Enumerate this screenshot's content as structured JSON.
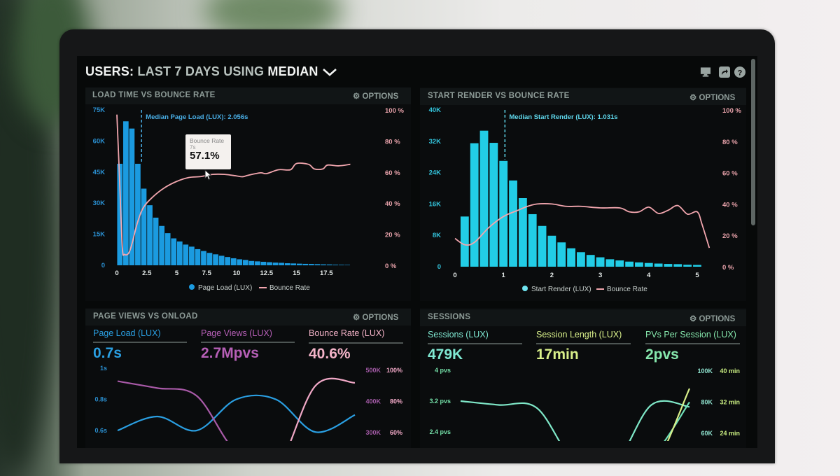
{
  "header": {
    "title_users": "USERS:",
    "title_range": "LAST 7 DAYS",
    "title_using": "USING",
    "title_stat": "MEDIAN",
    "icons": [
      "chevron-down-icon",
      "monitor-icon",
      "share-icon",
      "help-icon"
    ]
  },
  "panels": {
    "load_time": {
      "title": "LOAD TIME VS BOUNCE RATE",
      "options_label": "OPTIONS"
    },
    "start_render": {
      "title": "START RENDER VS BOUNCE RATE",
      "options_label": "OPTIONS"
    },
    "page_views": {
      "title": "PAGE VIEWS VS ONLOAD",
      "options_label": "OPTIONS",
      "kpis": [
        {
          "label": "Page Load (LUX)",
          "value": "0.7s",
          "color": "#2a9fe2"
        },
        {
          "label": "Page Views (LUX)",
          "value": "2.7Mpvs",
          "color": "#b65fb6"
        },
        {
          "label": "Bounce Rate (LUX)",
          "value": "40.6%",
          "color": "#f4b3c8"
        }
      ]
    },
    "sessions": {
      "title": "SESSIONS",
      "options_label": "OPTIONS",
      "kpis": [
        {
          "label": "Sessions (LUX)",
          "value": "479K",
          "color": "#7fe8d2"
        },
        {
          "label": "Session Length (LUX)",
          "value": "17min",
          "color": "#d9f08a"
        },
        {
          "label": "PVs Per Session (LUX)",
          "value": "2pvs",
          "color": "#86e8ad"
        }
      ]
    }
  },
  "chart_data": [
    {
      "type": "bar",
      "title": "LOAD TIME VS BOUNCE RATE",
      "xlim": [
        0,
        19.5
      ],
      "ylim": [
        0,
        75000
      ],
      "y2lim": [
        0,
        100
      ],
      "x_ticks": [
        {
          "v": 0,
          "label": "0"
        },
        {
          "v": 2.5,
          "label": "2.5"
        },
        {
          "v": 5,
          "label": "5"
        },
        {
          "v": 7.5,
          "label": "7.5"
        },
        {
          "v": 10,
          "label": "10"
        },
        {
          "v": 12.5,
          "label": "12.5"
        },
        {
          "v": 15,
          "label": "15"
        },
        {
          "v": 17.5,
          "label": "17.5"
        }
      ],
      "y_ticks": [
        {
          "v": 0,
          "label": "0"
        },
        {
          "v": 15000,
          "label": "15K"
        },
        {
          "v": 30000,
          "label": "30K"
        },
        {
          "v": 45000,
          "label": "45K"
        },
        {
          "v": 60000,
          "label": "60K"
        },
        {
          "v": 75000,
          "label": "75K"
        }
      ],
      "y2_ticks": [
        {
          "v": 0,
          "label": "0 %"
        },
        {
          "v": 20,
          "label": "20 %"
        },
        {
          "v": 40,
          "label": "40 %"
        },
        {
          "v": 60,
          "label": "60 %"
        },
        {
          "v": 80,
          "label": "80 %"
        },
        {
          "v": 100,
          "label": "100 %"
        }
      ],
      "grid": false,
      "legend_position": "bottom",
      "bars": {
        "name": "Page Load (LUX)",
        "color": "#1b9be0",
        "bin_width": 0.5,
        "x": [
          0.25,
          0.75,
          1.25,
          1.75,
          2.25,
          2.75,
          3.25,
          3.75,
          4.25,
          4.75,
          5.25,
          5.75,
          6.25,
          6.75,
          7.25,
          7.75,
          8.25,
          8.75,
          9.25,
          9.75,
          10.25,
          10.75,
          11.25,
          11.75,
          12.25,
          12.75,
          13.25,
          13.75,
          14.25,
          14.75,
          15.25,
          15.75,
          16.25,
          16.75,
          17.25,
          17.75,
          18.25,
          18.75,
          19.25
        ],
        "values": [
          49000,
          69500,
          66000,
          49000,
          37000,
          29000,
          23000,
          19000,
          15500,
          13000,
          11500,
          10000,
          9000,
          7800,
          6900,
          6000,
          5300,
          4600,
          4000,
          3400,
          2900,
          2600,
          2100,
          1900,
          1700,
          1500,
          1300,
          1200,
          1000,
          900,
          800,
          700,
          650,
          550,
          450,
          400,
          300,
          250,
          200
        ]
      },
      "line": {
        "name": "Bounce Rate",
        "color": "#f2a6ae",
        "points": [
          [
            0,
            97
          ],
          [
            0.2,
            60
          ],
          [
            0.45,
            12
          ],
          [
            0.65,
            7
          ],
          [
            1.0,
            8
          ],
          [
            1.3,
            15
          ],
          [
            1.7,
            27
          ],
          [
            2.2,
            37
          ],
          [
            3.0,
            44
          ],
          [
            4.0,
            50
          ],
          [
            5.0,
            54
          ],
          [
            6.0,
            56.5
          ],
          [
            7.0,
            57.1
          ],
          [
            8.0,
            58.5
          ],
          [
            9.0,
            58.5
          ],
          [
            10.0,
            57.5
          ],
          [
            10.5,
            57
          ],
          [
            11.0,
            58
          ],
          [
            12.0,
            59.5
          ],
          [
            12.5,
            59
          ],
          [
            13.5,
            61.5
          ],
          [
            14.5,
            61.5
          ],
          [
            15.0,
            65.5
          ],
          [
            16.0,
            65
          ],
          [
            16.5,
            62
          ],
          [
            17.2,
            62
          ],
          [
            17.6,
            64.5
          ],
          [
            18.5,
            64
          ],
          [
            19.5,
            65
          ]
        ]
      },
      "annotation": {
        "x": 2.056,
        "label": "Median Page Load (LUX): 2.056s"
      },
      "tooltip": {
        "title": "Bounce Rate",
        "subtitle": "7s",
        "value": "57.1%",
        "x": 7,
        "y": 57.1
      }
    },
    {
      "type": "bar",
      "title": "START RENDER VS BOUNCE RATE",
      "xlim": [
        0,
        5.3
      ],
      "ylim": [
        0,
        40000
      ],
      "y2lim": [
        0,
        100
      ],
      "x_ticks": [
        {
          "v": 0,
          "label": "0"
        },
        {
          "v": 1,
          "label": "1"
        },
        {
          "v": 2,
          "label": "2"
        },
        {
          "v": 3,
          "label": "3"
        },
        {
          "v": 4,
          "label": "4"
        },
        {
          "v": 5,
          "label": "5"
        }
      ],
      "y_ticks": [
        {
          "v": 0,
          "label": "0"
        },
        {
          "v": 8000,
          "label": "8K"
        },
        {
          "v": 16000,
          "label": "16K"
        },
        {
          "v": 24000,
          "label": "24K"
        },
        {
          "v": 32000,
          "label": "32K"
        },
        {
          "v": 40000,
          "label": "40K"
        }
      ],
      "y2_ticks": [
        {
          "v": 0,
          "label": "0 %"
        },
        {
          "v": 20,
          "label": "20 %"
        },
        {
          "v": 40,
          "label": "40 %"
        },
        {
          "v": 60,
          "label": "60 %"
        },
        {
          "v": 80,
          "label": "80 %"
        },
        {
          "v": 100,
          "label": "100 %"
        }
      ],
      "grid": false,
      "legend_position": "bottom",
      "bars": {
        "name": "Start Render (LUX)",
        "color": "#22cde6",
        "bin_width": 0.2,
        "x": [
          0.2,
          0.4,
          0.6,
          0.8,
          1.0,
          1.2,
          1.4,
          1.6,
          1.8,
          2.0,
          2.2,
          2.4,
          2.6,
          2.8,
          3.0,
          3.2,
          3.4,
          3.6,
          3.8,
          4.0,
          4.2,
          4.4,
          4.6,
          4.8,
          5.0
        ],
        "values": [
          12800,
          31500,
          34700,
          31600,
          27000,
          22000,
          17500,
          13400,
          10400,
          7900,
          6200,
          4700,
          3700,
          3000,
          2400,
          1900,
          1600,
          1300,
          1100,
          950,
          800,
          700,
          650,
          500,
          450
        ]
      },
      "line": {
        "name": "Bounce Rate",
        "color": "#f2a6ae",
        "points": [
          [
            0,
            18
          ],
          [
            0.2,
            14
          ],
          [
            0.4,
            15.5
          ],
          [
            0.7,
            25
          ],
          [
            1.0,
            32
          ],
          [
            1.3,
            36
          ],
          [
            1.5,
            38.5
          ],
          [
            1.7,
            40
          ],
          [
            2.0,
            40
          ],
          [
            2.3,
            38.5
          ],
          [
            2.6,
            38.5
          ],
          [
            3.0,
            37.5
          ],
          [
            3.4,
            37.5
          ],
          [
            3.6,
            35
          ],
          [
            3.8,
            35
          ],
          [
            4.0,
            38
          ],
          [
            4.2,
            34
          ],
          [
            4.4,
            36
          ],
          [
            4.6,
            39
          ],
          [
            4.8,
            33.5
          ],
          [
            5.0,
            35
          ],
          [
            5.1,
            27
          ],
          [
            5.25,
            12
          ]
        ]
      },
      "annotation": {
        "x": 1.031,
        "label": "Median Start Render (LUX): 1.031s"
      }
    },
    {
      "type": "line",
      "title": "PAGE VIEWS VS ONLOAD",
      "y_ticks": [
        {
          "v": 1,
          "label": "1s"
        },
        {
          "v": 0.8,
          "label": "0.8s"
        },
        {
          "v": 0.6,
          "label": "0.6s"
        }
      ],
      "y2_ticks": [
        {
          "v": 500,
          "label": "500K"
        },
        {
          "v": 400,
          "label": "400K"
        },
        {
          "v": 300,
          "label": "300K"
        }
      ],
      "y3_ticks": [
        {
          "v": 100,
          "label": "100%"
        },
        {
          "v": 80,
          "label": "80%"
        },
        {
          "v": 60,
          "label": "60%"
        }
      ],
      "series": [
        {
          "name": "Page Load (LUX)",
          "axis": "y",
          "color": "#2a9fe2",
          "values": [
            0.6,
            0.69,
            0.6,
            0.8,
            0.8,
            0.59,
            0.7
          ]
        },
        {
          "name": "Page Views (LUX)",
          "axis": "y2",
          "color": "#a95aa8",
          "values": [
            465,
            443,
            418,
            240,
            235,
            255,
            270
          ]
        },
        {
          "name": "Bounce Rate (LUX)",
          "axis": "y3",
          "color": "#f0a8c6",
          "values": [
            30,
            30,
            30,
            30,
            35,
            90,
            92
          ]
        }
      ]
    },
    {
      "type": "line",
      "title": "SESSIONS",
      "y_ticks": [
        {
          "v": 4,
          "label": "4 pvs"
        },
        {
          "v": 3.2,
          "label": "3.2 pvs"
        },
        {
          "v": 2.4,
          "label": "2.4 pvs"
        }
      ],
      "y2_ticks": [
        {
          "v": 100,
          "label": "100K"
        },
        {
          "v": 80,
          "label": "80K"
        },
        {
          "v": 60,
          "label": "60K"
        }
      ],
      "y3_ticks": [
        {
          "v": 40,
          "label": "40 min"
        },
        {
          "v": 32,
          "label": "32 min"
        },
        {
          "v": 24,
          "label": "24 min"
        }
      ],
      "series": [
        {
          "name": "PVs Per Session (LUX)",
          "axis": "y",
          "color": "#7fe8c8",
          "values": [
            3.2,
            3.1,
            3.02,
            1.6,
            1.5,
            3.1,
            3.05
          ]
        },
        {
          "name": "Sessions (LUX)",
          "axis": "y2",
          "color": "#6fe0b8",
          "values": [
            40,
            40,
            40,
            40,
            40,
            45,
            80
          ]
        },
        {
          "name": "Session Length (LUX)",
          "axis": "y3",
          "color": "#d9f08a",
          "values": [
            10,
            10,
            10,
            10,
            10,
            14,
            35.5
          ]
        }
      ]
    }
  ]
}
